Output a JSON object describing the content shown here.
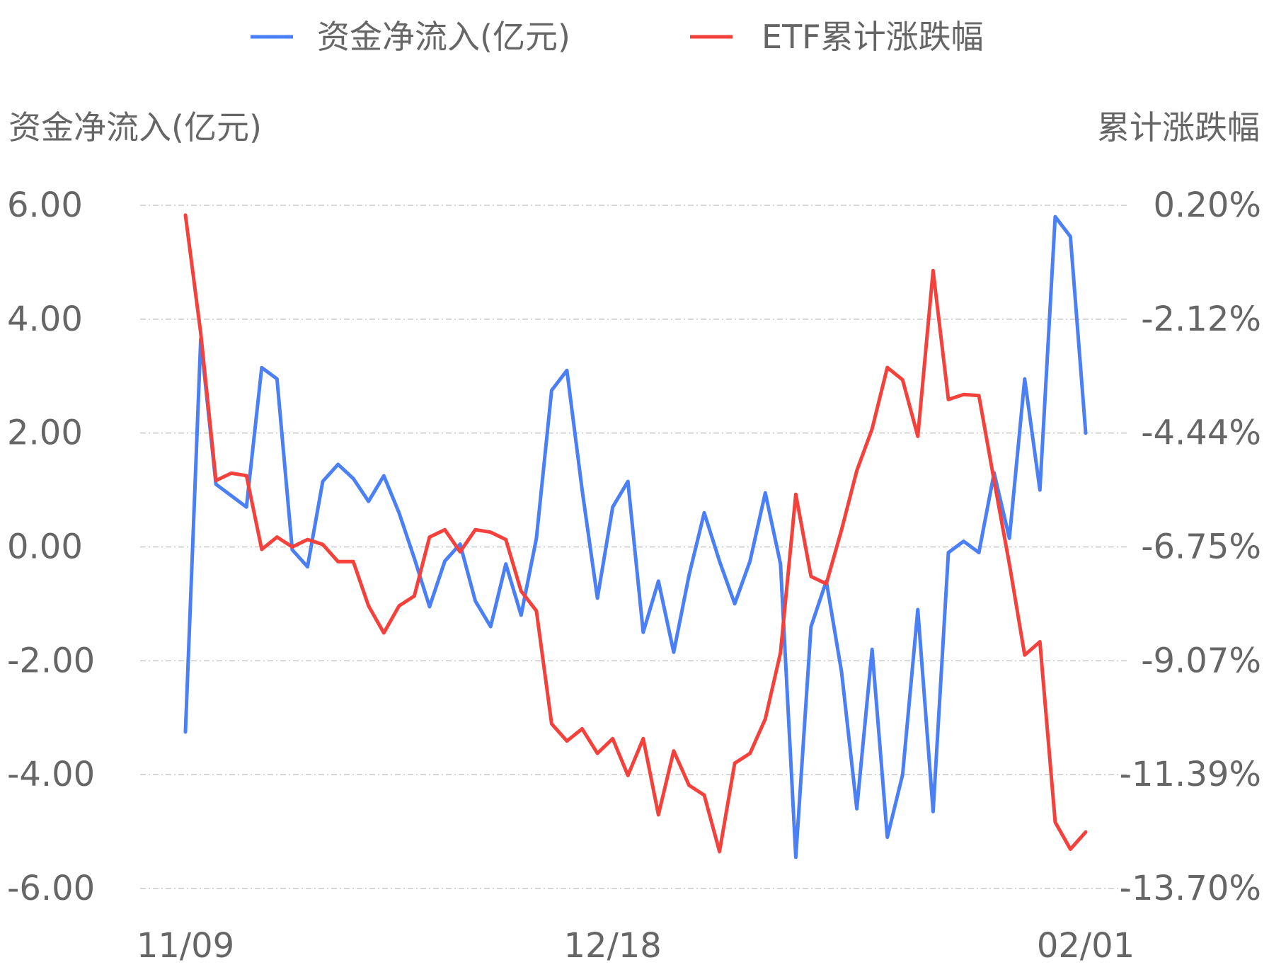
{
  "chart_data": {
    "type": "line",
    "legend": {
      "position": "top-center"
    },
    "grid": true,
    "left_axis": {
      "title": "资金净流入(亿元)",
      "range": [
        -6,
        6
      ],
      "ticks": [
        "6.00",
        "4.00",
        "2.00",
        "0.00",
        "-2.00",
        "-4.00",
        "-6.00"
      ]
    },
    "right_axis": {
      "title": "累计涨跌幅",
      "range": [
        -13.7,
        0.2
      ],
      "ticks": [
        "0.20%",
        "-2.12%",
        "-4.44%",
        "-6.75%",
        "-9.07%",
        "-11.39%",
        "-13.70%"
      ]
    },
    "x_tick_labels": [
      "11/09",
      "12/18",
      "02/01"
    ],
    "series": [
      {
        "name": "资金净流入(亿元)",
        "axis": "left",
        "color": "#4A7FF5",
        "values": [
          -3.25,
          3.65,
          1.1,
          0.9,
          0.7,
          3.15,
          2.95,
          -0.05,
          -0.35,
          1.15,
          1.45,
          1.2,
          0.8,
          1.25,
          0.6,
          -0.2,
          -1.05,
          -0.25,
          0.05,
          -0.95,
          -1.4,
          -0.3,
          -1.2,
          0.15,
          2.75,
          3.1,
          1.0,
          -0.9,
          0.7,
          1.15,
          -1.5,
          -0.6,
          -1.85,
          -0.5,
          0.6,
          -0.25,
          -1.0,
          -0.25,
          0.95,
          -0.3,
          -5.45,
          -1.4,
          -0.6,
          -2.2,
          -4.6,
          -1.8,
          -5.1,
          -4.0,
          -1.1,
          -4.65,
          -0.1,
          0.1,
          -0.1,
          1.3,
          0.15,
          2.95,
          1.0,
          5.8,
          5.45,
          2.0
        ]
      },
      {
        "name": "ETF累计涨跌幅",
        "axis": "right",
        "color": "#F5413B",
        "values": [
          0.0,
          -2.4,
          -5.4,
          -5.25,
          -5.3,
          -6.8,
          -6.55,
          -6.75,
          -6.6,
          -6.7,
          -7.05,
          -7.05,
          -7.95,
          -8.5,
          -7.95,
          -7.75,
          -6.55,
          -6.4,
          -6.85,
          -6.4,
          -6.45,
          -6.6,
          -7.65,
          -8.05,
          -10.35,
          -10.7,
          -10.45,
          -10.95,
          -10.65,
          -11.4,
          -10.65,
          -12.2,
          -10.9,
          -11.6,
          -11.8,
          -12.95,
          -11.15,
          -10.95,
          -10.25,
          -8.9,
          -5.68,
          -7.35,
          -7.5,
          -6.4,
          -5.2,
          -4.35,
          -3.1,
          -3.35,
          -4.5,
          -1.13,
          -3.75,
          -3.65,
          -3.67,
          -5.4,
          -7.1,
          -8.95,
          -8.68,
          -12.35,
          -12.9,
          -12.55
        ]
      }
    ]
  }
}
